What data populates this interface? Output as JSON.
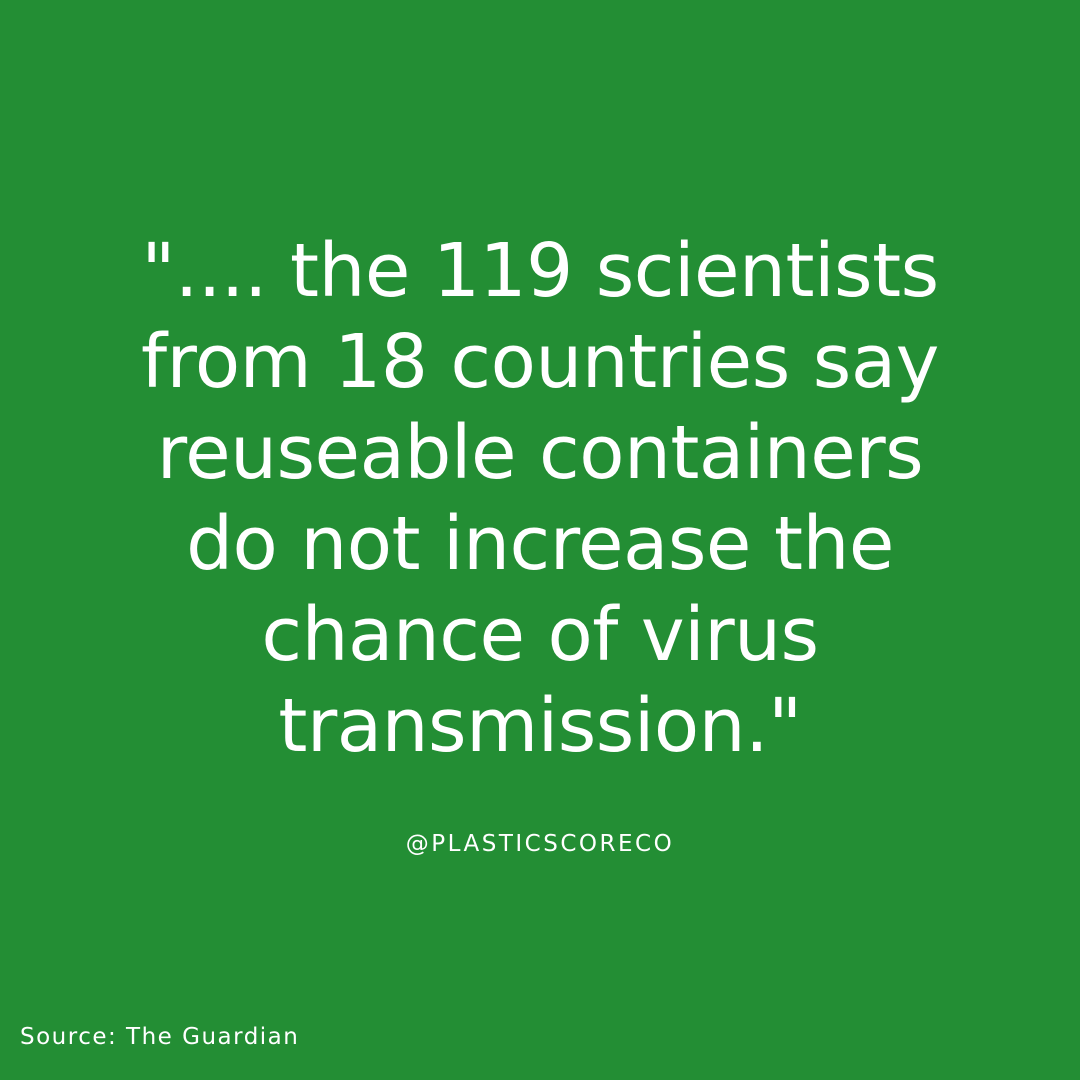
{
  "colors": {
    "background": "#238e34",
    "text": "#ffffff"
  },
  "quote": {
    "lines": [
      "\".... the 119 scientists",
      "from 18 countries say",
      "reuseable containers",
      "do not increase the",
      "chance of virus",
      "transmission.\""
    ]
  },
  "handle": "@PLASTICSCORECO",
  "source": "Source: The Guardian"
}
